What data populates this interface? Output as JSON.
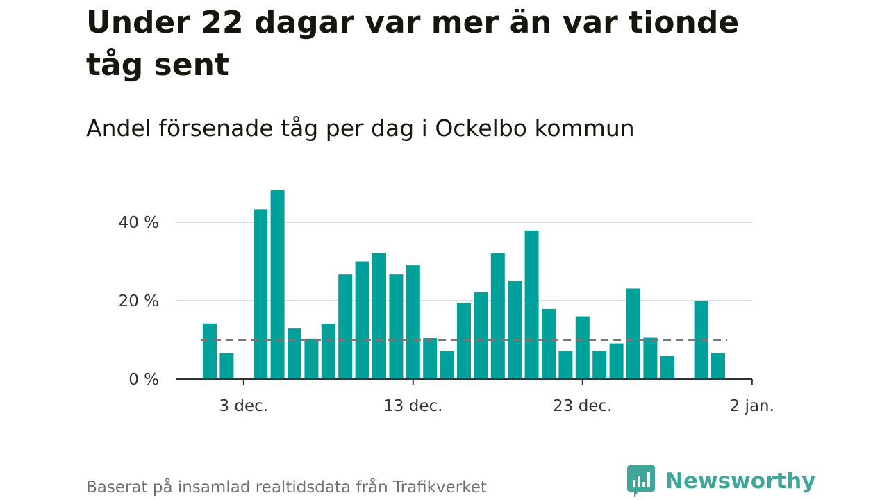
{
  "title": "Under 22 dagar var mer än var tionde tåg sent",
  "subtitle": "Andel försenade tåg per dag i Ockelbo kommun",
  "source": "Baserat på insamlad realtidsdata från Trafikverket",
  "brand": {
    "name": "Newsworthy",
    "logo_icon": "bar-chart-speech-bubble-icon",
    "color": "#3fa69a"
  },
  "colors": {
    "bar": "#00a19a",
    "gridline": "#dcdcdc",
    "axis": "#333333",
    "reference_line": "#777777"
  },
  "chart_data": {
    "type": "bar",
    "x_start": "2023-12-01",
    "x_unit": "day",
    "values": [
      14.2,
      6.6,
      null,
      43.3,
      48.3,
      12.9,
      10.3,
      14.1,
      26.7,
      30.0,
      32.1,
      26.7,
      29.0,
      10.5,
      7.1,
      19.4,
      22.2,
      32.1,
      25.0,
      37.9,
      17.9,
      7.1,
      16.0,
      7.1,
      9.1,
      23.1,
      10.7,
      5.9,
      null,
      20.0,
      6.6
    ],
    "reference_value": 10,
    "reference_style": "dashed",
    "y_unit": "%",
    "ylim": [
      0,
      50
    ],
    "yticks": [
      0,
      20,
      40
    ],
    "ytick_labels": [
      "0 %",
      "20 %",
      "40 %"
    ],
    "xticks": [
      "2023-12-03",
      "2023-12-13",
      "2023-12-23",
      "2024-01-02"
    ],
    "xtick_labels": [
      "3 dec.",
      "13 dec.",
      "23 dec.",
      "2 jan."
    ],
    "grid": true
  }
}
